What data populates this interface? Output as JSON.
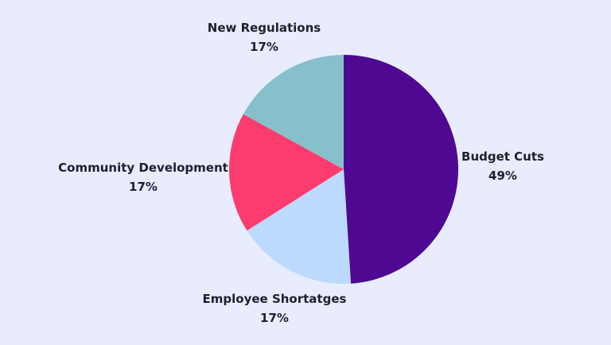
{
  "chart_data": {
    "type": "pie",
    "slices": [
      {
        "label": "Budget Cuts",
        "value": 49,
        "value_label": "49%",
        "color": "#4f0891"
      },
      {
        "label": "Employee Shortatges",
        "value": 17,
        "value_label": "17%",
        "color": "#bcdafd"
      },
      {
        "label": "Community Development",
        "value": 17,
        "value_label": "17%",
        "color": "#fc3b6f"
      },
      {
        "label": "New Regulations",
        "value": 17,
        "value_label": "17%",
        "color": "#85c0cb"
      }
    ],
    "start": "top",
    "direction": "clockwise",
    "background": "#e8ecfc"
  }
}
